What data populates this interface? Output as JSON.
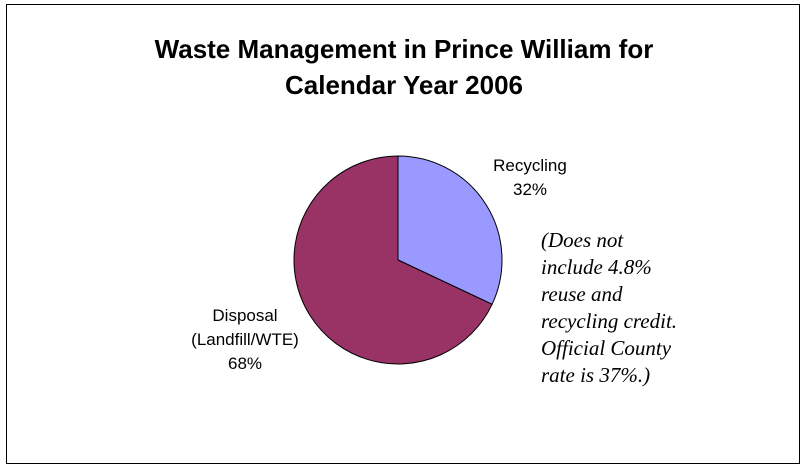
{
  "chart_data": {
    "type": "pie",
    "title_lines": [
      "Waste Management in Prince William for",
      "Calendar Year 2006"
    ],
    "slices": [
      {
        "name": "Recycling",
        "value": 32,
        "label_lines": [
          "Recycling",
          "32%"
        ],
        "color": "#9999ff"
      },
      {
        "name": "Disposal (Landfill/WTE)",
        "value": 68,
        "label_lines": [
          "Disposal",
          "(Landfill/WTE)",
          "68%"
        ],
        "color": "#993366"
      }
    ],
    "start_angle_deg": 0,
    "direction": "clockwise",
    "slice_border_color": "#000000",
    "legend": "none",
    "annotation_lines": [
      "(Does not",
      "include 4.8%",
      "reuse and",
      "recycling credit.",
      "Official County",
      "rate is 37%.)"
    ]
  }
}
